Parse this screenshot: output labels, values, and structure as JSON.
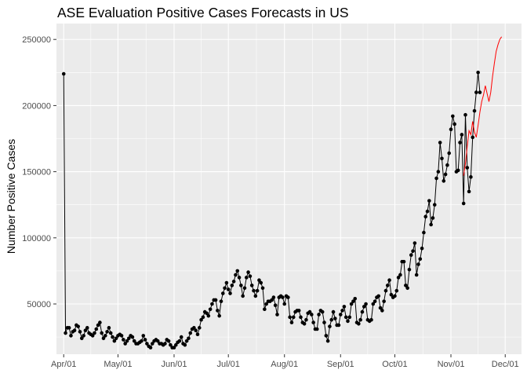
{
  "chart_data": {
    "type": "line",
    "title": "ASE Evaluation Positive Cases Forecasts in US",
    "xlabel": "",
    "ylabel": "Number Positive Cases",
    "x_ticks": [
      "Apr/01",
      "May/01",
      "Jun/01",
      "Jul/01",
      "Aug/01",
      "Sep/01",
      "Oct/01",
      "Nov/01",
      "Dec/01"
    ],
    "y_ticks": [
      "50000",
      "100000",
      "150000",
      "200000",
      "250000"
    ],
    "xlim": [
      "2020-03-28",
      "2020-12-10"
    ],
    "ylim": [
      12000,
      262000
    ],
    "grid": true,
    "background": "#ebebeb",
    "gridline_color": "#ffffff",
    "series": [
      {
        "color": "#000000",
        "markers": true,
        "x_start": "2020-04-01",
        "values": [
          224000,
          28000,
          32000,
          32000,
          26000,
          29000,
          30000,
          34000,
          33000,
          29000,
          24000,
          26000,
          30000,
          32000,
          28000,
          27000,
          26000,
          28000,
          31000,
          34000,
          36000,
          28000,
          24000,
          26000,
          29000,
          32000,
          28000,
          25000,
          22000,
          24000,
          26000,
          27000,
          26000,
          23000,
          20000,
          22000,
          24000,
          26000,
          25000,
          22000,
          20000,
          20000,
          21000,
          22000,
          26000,
          23000,
          20000,
          18000,
          17000,
          20000,
          22000,
          23000,
          22000,
          20000,
          20000,
          19000,
          20000,
          23000,
          22000,
          19000,
          17000,
          17000,
          19000,
          21000,
          22000,
          25000,
          20000,
          19000,
          22000,
          24000,
          28000,
          31000,
          32000,
          30000,
          27000,
          32000,
          38000,
          40000,
          44000,
          43000,
          41000,
          46000,
          50000,
          53000,
          53000,
          45000,
          41000,
          52000,
          58000,
          62000,
          66000,
          61000,
          58000,
          64000,
          67000,
          72000,
          75000,
          70000,
          64000,
          56000,
          62000,
          70000,
          74000,
          71000,
          64000,
          60000,
          56000,
          60000,
          68000,
          66000,
          62000,
          46000,
          50000,
          52000,
          52000,
          53000,
          55000,
          49000,
          42000,
          55000,
          56000,
          55000,
          50000,
          56000,
          55000,
          40000,
          36000,
          40000,
          44000,
          45000,
          45000,
          40000,
          36000,
          35000,
          38000,
          43000,
          44000,
          42000,
          36000,
          31000,
          31000,
          42000,
          45000,
          44000,
          36000,
          26000,
          22000,
          33000,
          38000,
          44000,
          39000,
          34000,
          34000,
          42000,
          45000,
          48000,
          40000,
          37000,
          40000,
          50000,
          52000,
          54000,
          36000,
          35000,
          38000,
          44000,
          48000,
          50000,
          38000,
          37000,
          38000,
          50000,
          52000,
          55000,
          56000,
          47000,
          45000,
          52000,
          60000,
          64000,
          68000,
          57000,
          55000,
          56000,
          60000,
          70000,
          72000,
          82000,
          82000,
          64000,
          62000,
          76000,
          87000,
          90000,
          96000,
          72000,
          80000,
          84000,
          92000,
          104000,
          116000,
          120000,
          128000,
          110000,
          115000,
          125000,
          145000,
          150000,
          172000,
          160000,
          143000,
          148000,
          155000,
          164000,
          182000,
          192000,
          186000,
          150000,
          151000,
          172000,
          178000,
          126000,
          193000,
          153000,
          135000,
          146000,
          176000,
          196000,
          210000,
          225000,
          210000
        ]
      },
      {
        "color": "#ff0000",
        "markers": false,
        "x_start": "2020-11-08",
        "values": [
          147000,
          156000,
          169000,
          181000,
          178000,
          188000,
          180000,
          176000,
          185000,
          195000,
          203000,
          208000,
          215000,
          209000,
          203000,
          210000,
          222000,
          232000,
          241000,
          246000,
          250000,
          252000
        ]
      }
    ]
  }
}
